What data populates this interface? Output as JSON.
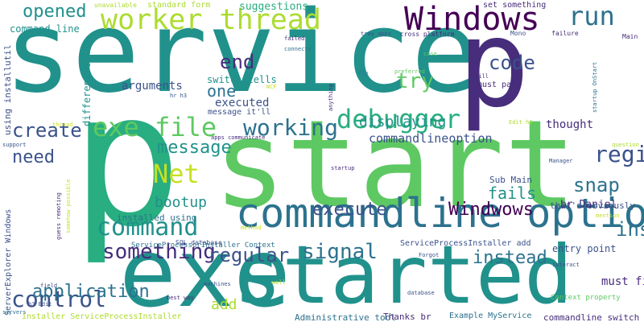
{
  "word_cloud": {
    "colors": {
      "background": "#ffffff",
      "palette": [
        "#440154",
        "#472d7b",
        "#3b528b",
        "#2c728e",
        "#21918c",
        "#28ae80",
        "#5ec962",
        "#addc30",
        "#c8e020"
      ]
    },
    "words": [
      "service",
      "p",
      "start",
      "started",
      "exe",
      "commandline option",
      "Windows",
      "worker thread",
      "command",
      "exe file",
      "p",
      "run",
      "debugger",
      "Net",
      "control",
      "working",
      "register",
      "signal",
      "installutil",
      "application",
      "something",
      "execute",
      "create",
      "message",
      "end",
      "code",
      "try",
      "regular",
      "Windwows",
      "snap",
      "instead",
      "need",
      "fails",
      "opened",
      "bootup",
      "displaying",
      "add",
      "one",
      "commandlineoption",
      "arguments",
      "executed",
      "switch tells",
      "must first",
      "thought",
      "entry point",
      "br Daniel",
      "suggestions",
      "standard form",
      "set something",
      "command line",
      "unavailable",
      "different entry",
      "using installutil",
      "installed using",
      "Administrative tool",
      "Thanks br",
      "Example MyService",
      "commandline switch",
      "ServiceProcessInstaller add",
      "ServiceProcessorInstaller Context",
      "ServerExplorer Windows",
      "installer ServiceProcessInstaller",
      "SQL database",
      "Context property",
      "must pass",
      "message it'll",
      "that'd obviously",
      "Sub Main",
      "cross platform",
      "tray apps",
      "Mono",
      "failure",
      "Main",
      "startup OnStart",
      "Edit h3",
      "question",
      "Manager",
      "hr h3",
      "WCF",
      "apps communicate",
      "guess remoting",
      "somehow possible",
      "field",
      "h3 Edit",
      "machines",
      "well",
      "best way",
      "database",
      "Forgot",
      "interact",
      "preferred",
      "case",
      "still",
      "fly",
      "anything",
      "connects",
      "failed",
      "support",
      "servers",
      "thread",
      "method",
      "startup",
      "mention"
    ]
  }
}
